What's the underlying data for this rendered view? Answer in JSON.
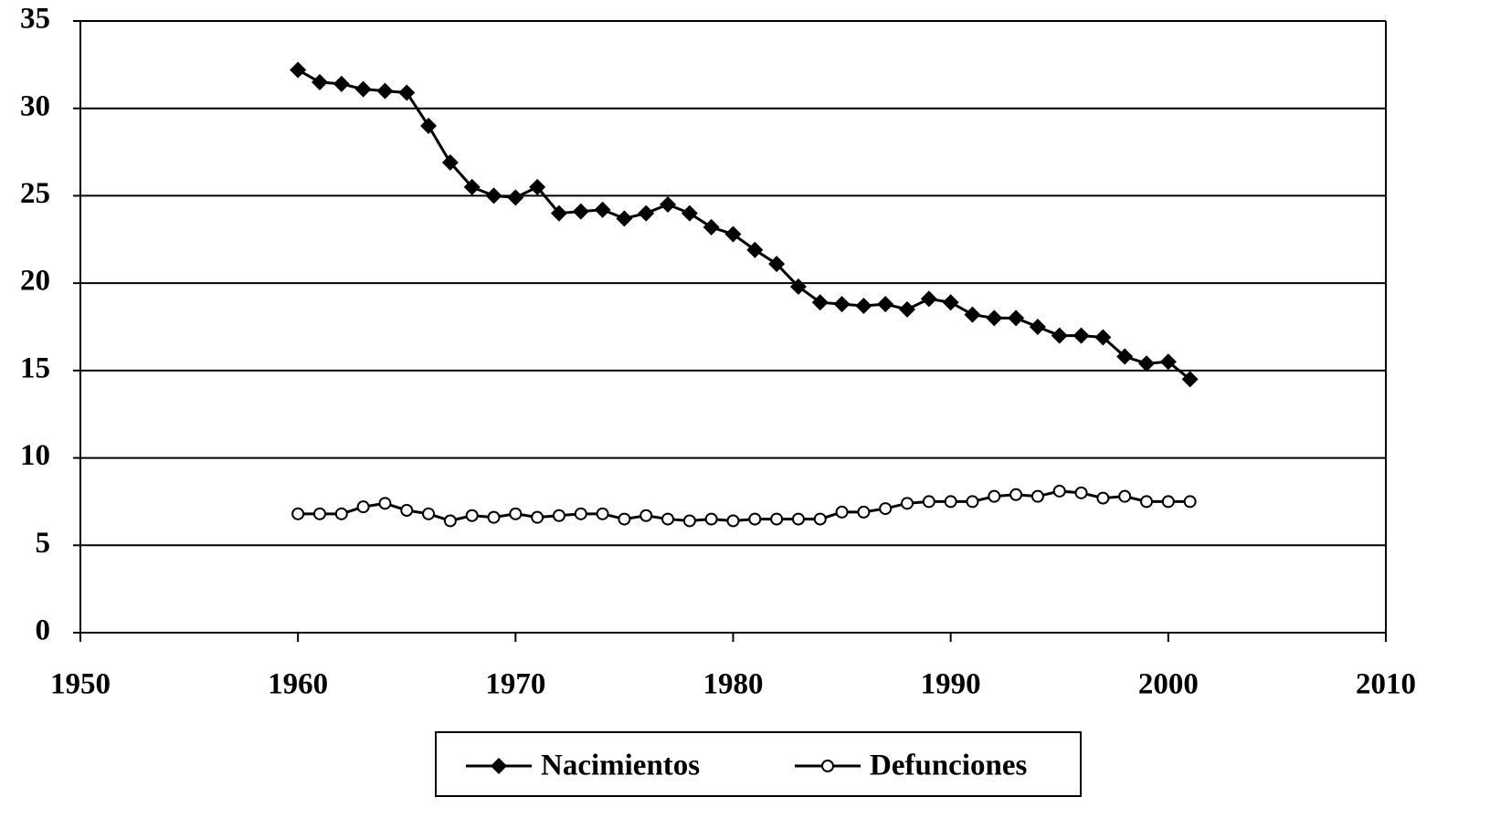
{
  "chart_data": {
    "type": "line",
    "x": [
      1960,
      1961,
      1962,
      1963,
      1964,
      1965,
      1966,
      1967,
      1968,
      1969,
      1970,
      1971,
      1972,
      1973,
      1974,
      1975,
      1976,
      1977,
      1978,
      1979,
      1980,
      1981,
      1982,
      1983,
      1984,
      1985,
      1986,
      1987,
      1988,
      1989,
      1990,
      1991,
      1992,
      1993,
      1994,
      1995,
      1996,
      1997,
      1998,
      1999,
      2000,
      2001
    ],
    "series": [
      {
        "name": "Nacimientos",
        "color": "#000000",
        "marker": "diamond",
        "values": [
          32.2,
          31.5,
          31.4,
          31.1,
          31.0,
          30.9,
          29.0,
          26.9,
          25.5,
          25.0,
          24.9,
          25.5,
          24.0,
          24.1,
          24.2,
          23.7,
          24.0,
          24.5,
          24.0,
          23.2,
          22.8,
          21.9,
          21.1,
          19.8,
          18.9,
          18.8,
          18.7,
          18.8,
          18.5,
          19.1,
          18.9,
          18.2,
          18.0,
          18.0,
          17.5,
          17.0,
          17.0,
          16.9,
          15.8,
          15.4,
          15.5,
          14.5
        ]
      },
      {
        "name": "Defunciones",
        "color": "#000000",
        "marker": "circle",
        "values": [
          6.8,
          6.8,
          6.8,
          7.2,
          7.4,
          7.0,
          6.8,
          6.4,
          6.7,
          6.6,
          6.8,
          6.6,
          6.7,
          6.8,
          6.8,
          6.5,
          6.7,
          6.5,
          6.4,
          6.5,
          6.4,
          6.5,
          6.5,
          6.5,
          6.5,
          6.9,
          6.9,
          7.1,
          7.4,
          7.5,
          7.5,
          7.5,
          7.8,
          7.9,
          7.8,
          8.1,
          8.0,
          7.7,
          7.8,
          7.5,
          7.5,
          7.5
        ]
      }
    ],
    "xlim": [
      1950,
      2010
    ],
    "xticks": [
      1950,
      1960,
      1970,
      1980,
      1990,
      2000,
      2010
    ],
    "ylim": [
      0,
      35
    ],
    "yticks": [
      0,
      5,
      10,
      15,
      20,
      25,
      30,
      35
    ],
    "grid": true,
    "legend": "bottom"
  }
}
